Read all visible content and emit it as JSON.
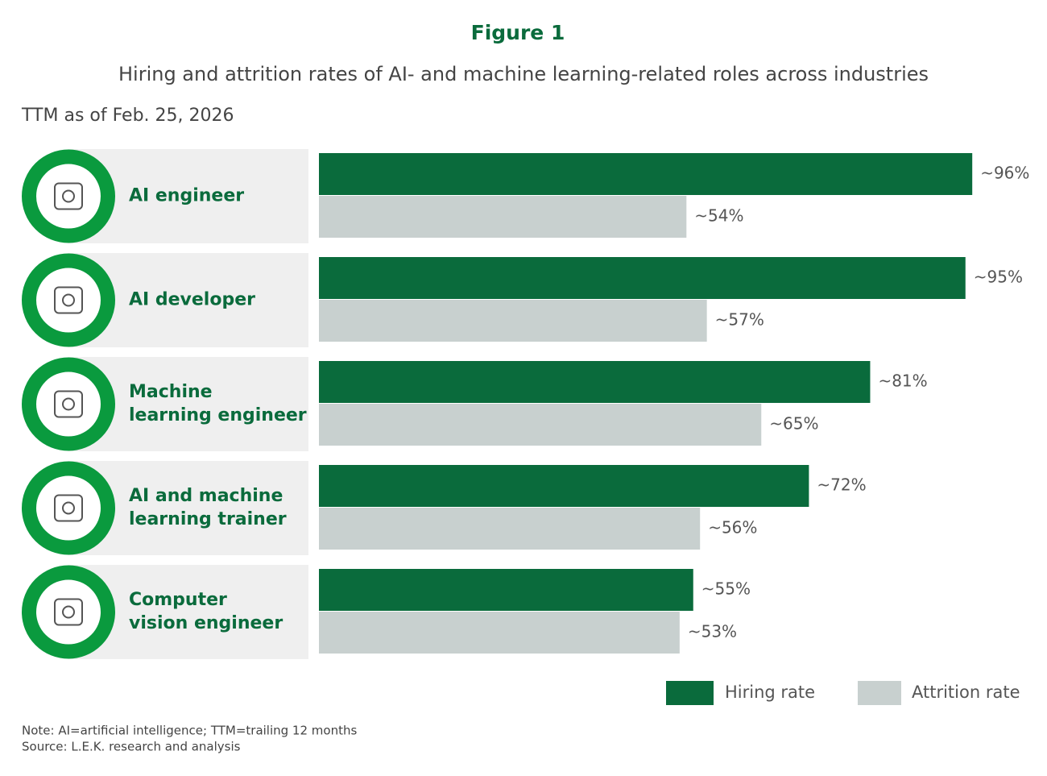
{
  "chart_data": {
    "type": "bar",
    "orientation": "horizontal",
    "figure_label": "Figure 1",
    "title": "Hiring and attrition rates of AI- and machine learning-related roles across industries",
    "subtitle": "TTM as of Feb. 25, 2026",
    "categories": [
      [
        "AI engineer"
      ],
      [
        "AI developer"
      ],
      [
        "Machine",
        "learning engineer"
      ],
      [
        "AI and machine",
        "learning trainer"
      ],
      [
        "Computer",
        "vision engineer"
      ]
    ],
    "series": [
      {
        "name": "Hiring rate",
        "color": "#0a6b3c",
        "values": [
          96,
          95,
          81,
          72,
          55
        ],
        "value_labels": [
          "~96%",
          "~95%",
          "~81%",
          "~72%",
          "~55%"
        ]
      },
      {
        "name": "Attrition rate",
        "color": "#c8d0cf",
        "values": [
          54,
          57,
          65,
          56,
          53
        ],
        "value_labels": [
          "~54%",
          "~57%",
          "~65%",
          "~56%",
          "~53%"
        ]
      }
    ],
    "legend": "bottom-right",
    "note": "Note: AI=artificial intelligence; TTM=trailing 12 months",
    "source": "Source: L.E.K. research and analysis"
  }
}
